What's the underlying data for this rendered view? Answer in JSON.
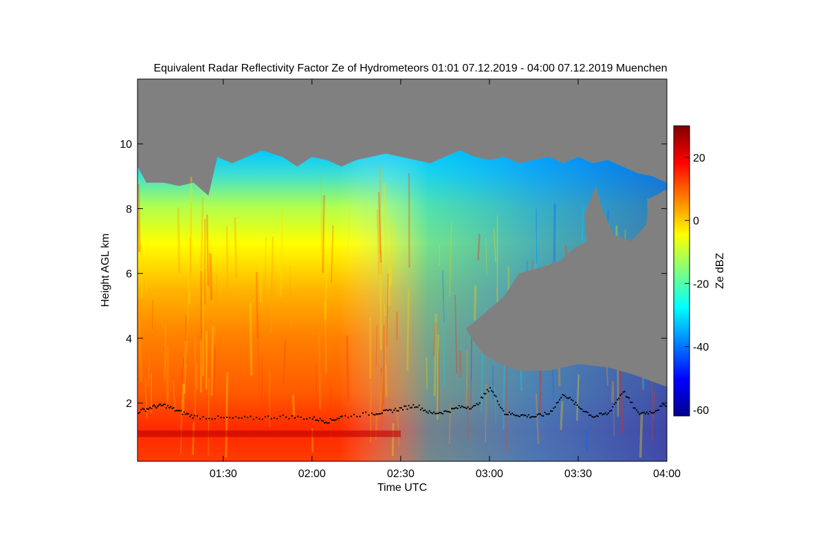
{
  "chart_data": {
    "type": "heatmap",
    "title": "Equivalent Radar Reflectivity Factor Ze of Hydrometeors   01:01 07.12.2019 - 04:00 07.12.2019 Muenchen",
    "xlabel": "Time UTC",
    "ylabel": "Height AGL km",
    "xlim": [
      "01:01",
      "04:00"
    ],
    "ylim": [
      0.2,
      12
    ],
    "x_ticks": [
      "01:30",
      "02:00",
      "02:30",
      "03:00",
      "03:30",
      "04:00"
    ],
    "x_tick_minutes": [
      90,
      120,
      150,
      180,
      210,
      240
    ],
    "y_ticks": [
      "2",
      "4",
      "6",
      "8",
      "10"
    ],
    "y_tick_values": [
      2,
      4,
      6,
      8,
      10
    ],
    "colorbar": {
      "label": "Ze dBZ",
      "range": [
        -62,
        30
      ],
      "ticks": [
        "20",
        "0",
        "-20",
        "-40",
        "-60"
      ],
      "tick_values": [
        20,
        0,
        -20,
        -40,
        -60
      ],
      "colormap": "jet"
    },
    "no_signal_color": "#808080",
    "echo_top_km": [
      [
        61,
        9.3
      ],
      [
        64,
        8.8
      ],
      [
        70,
        8.8
      ],
      [
        75,
        8.7
      ],
      [
        80,
        8.8
      ],
      [
        85,
        8.4
      ],
      [
        88,
        9.6
      ],
      [
        93,
        9.4
      ],
      [
        98,
        9.6
      ],
      [
        103,
        9.8
      ],
      [
        110,
        9.6
      ],
      [
        115,
        9.3
      ],
      [
        120,
        9.6
      ],
      [
        125,
        9.5
      ],
      [
        130,
        9.3
      ],
      [
        135,
        9.5
      ],
      [
        140,
        9.6
      ],
      [
        145,
        9.7
      ],
      [
        150,
        9.6
      ],
      [
        155,
        9.5
      ],
      [
        160,
        9.4
      ],
      [
        165,
        9.6
      ],
      [
        170,
        9.8
      ],
      [
        175,
        9.6
      ],
      [
        180,
        9.5
      ],
      [
        185,
        9.6
      ],
      [
        190,
        9.4
      ],
      [
        195,
        9.5
      ],
      [
        200,
        9.6
      ],
      [
        205,
        9.4
      ],
      [
        210,
        9.6
      ],
      [
        215,
        9.4
      ],
      [
        220,
        9.5
      ],
      [
        225,
        9.3
      ],
      [
        230,
        9.1
      ],
      [
        235,
        9.0
      ],
      [
        240,
        8.8
      ]
    ],
    "gap_polygon_time_km": [
      [
        216,
        8.7
      ],
      [
        212,
        7.8
      ],
      [
        213,
        7.0
      ],
      [
        209,
        6.8
      ],
      [
        204,
        6.4
      ],
      [
        198,
        6.2
      ],
      [
        190,
        6.0
      ],
      [
        185,
        5.3
      ],
      [
        180,
        4.9
      ],
      [
        175,
        4.5
      ],
      [
        172,
        4.3
      ],
      [
        174,
        4.0
      ],
      [
        178,
        3.5
      ],
      [
        184,
        3.2
      ],
      [
        190,
        3.0
      ],
      [
        200,
        3.0
      ],
      [
        210,
        3.2
      ],
      [
        220,
        3.1
      ],
      [
        228,
        2.9
      ],
      [
        234,
        2.7
      ],
      [
        240,
        2.5
      ],
      [
        240,
        8.6
      ],
      [
        234,
        8.3
      ],
      [
        233,
        7.5
      ],
      [
        228,
        7.0
      ],
      [
        222,
        7.2
      ],
      [
        218,
        8.0
      ]
    ],
    "cloud_base_km": [
      [
        61,
        1.75
      ],
      [
        66,
        1.9
      ],
      [
        70,
        1.95
      ],
      [
        75,
        1.75
      ],
      [
        80,
        1.6
      ],
      [
        90,
        1.55
      ],
      [
        100,
        1.55
      ],
      [
        110,
        1.6
      ],
      [
        120,
        1.55
      ],
      [
        125,
        1.45
      ],
      [
        130,
        1.6
      ],
      [
        140,
        1.7
      ],
      [
        145,
        1.75
      ],
      [
        150,
        1.85
      ],
      [
        155,
        1.95
      ],
      [
        160,
        1.7
      ],
      [
        165,
        1.75
      ],
      [
        170,
        1.9
      ],
      [
        175,
        1.9
      ],
      [
        180,
        2.5
      ],
      [
        185,
        1.7
      ],
      [
        190,
        1.65
      ],
      [
        195,
        1.6
      ],
      [
        200,
        1.7
      ],
      [
        205,
        2.3
      ],
      [
        210,
        1.9
      ],
      [
        215,
        1.6
      ],
      [
        220,
        1.7
      ],
      [
        225,
        2.4
      ],
      [
        230,
        1.7
      ],
      [
        235,
        1.75
      ],
      [
        240,
        2.0
      ]
    ]
  }
}
